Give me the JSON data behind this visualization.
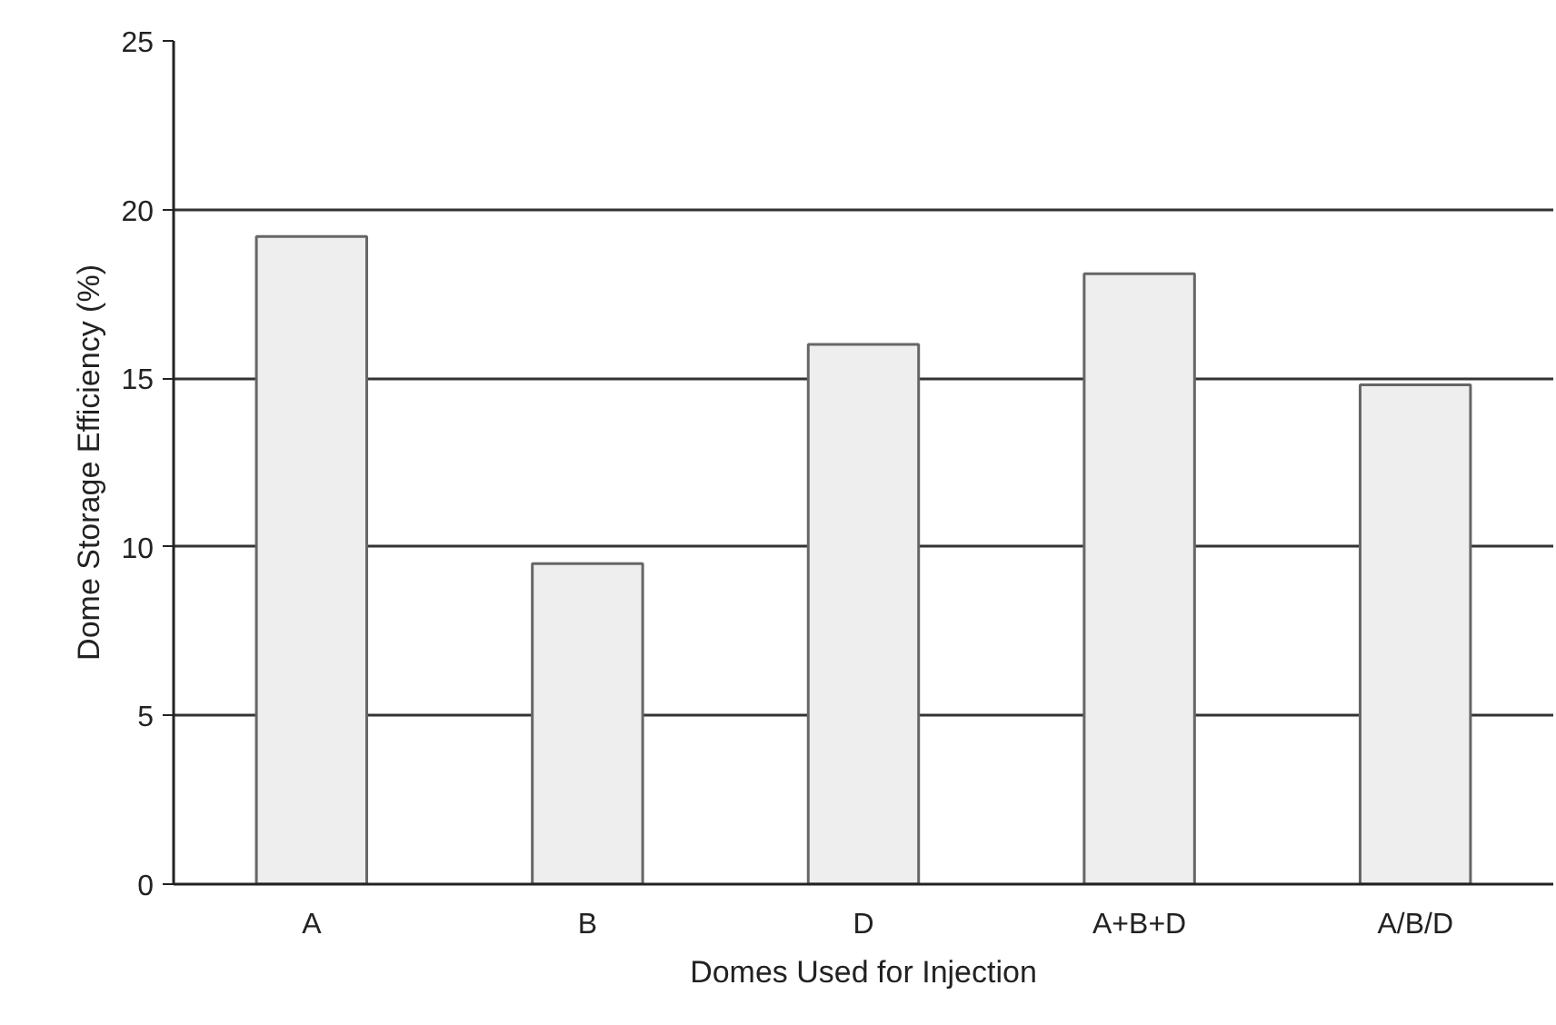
{
  "chart_data": {
    "type": "bar",
    "xlabel": "Domes Used for Injection",
    "ylabel": "Dome Storage Efficiency (%)",
    "categories": [
      "A",
      "B",
      "D",
      "A+B+D",
      "A/B/D"
    ],
    "values": [
      19.2,
      9.5,
      16.0,
      18.1,
      14.8
    ],
    "color": "#eeeeee",
    "ylim": [
      0,
      25
    ],
    "yticks": [
      0,
      5,
      10,
      15,
      20,
      25
    ],
    "grid": "y"
  }
}
